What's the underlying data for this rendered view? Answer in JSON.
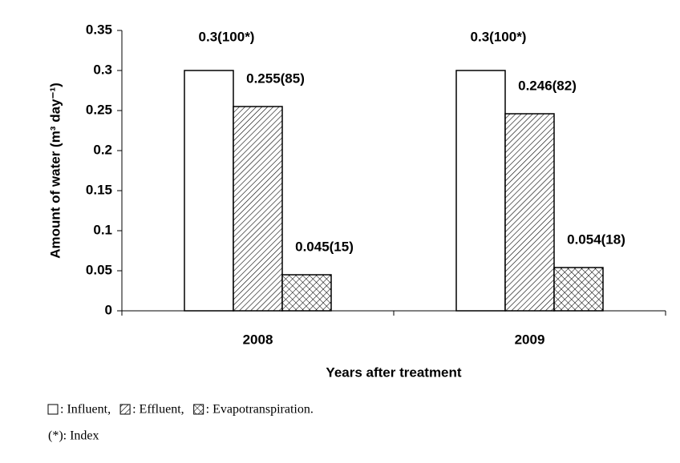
{
  "chart_data": {
    "type": "bar",
    "categories": [
      "2008",
      "2009"
    ],
    "series": [
      {
        "name": ": Influent,",
        "color": "#ffffff",
        "pattern": "none",
        "values": [
          0.3,
          0.3
        ],
        "value_labels": [
          "0.3(100*)",
          "0.3(100*)"
        ]
      },
      {
        "name": ": Effluent,",
        "color": "#ffffff",
        "pattern": "hatch",
        "values": [
          0.255,
          0.246
        ],
        "value_labels": [
          "0.255(85)",
          "0.246(82)"
        ]
      },
      {
        "name": ": Evapotranspiration.",
        "color": "#ffffff",
        "pattern": "crosshatch",
        "values": [
          0.045,
          0.054
        ],
        "value_labels": [
          "0.045(15)",
          "0.054(18)"
        ]
      }
    ],
    "ylim": [
      0,
      0.35
    ],
    "yticks": [
      0,
      0.05,
      0.1,
      0.15,
      0.2,
      0.25,
      0.3,
      0.35
    ],
    "y_label": "Amount of water (m³ day⁻¹)",
    "x_label": "Years after treatment",
    "footnote": "(*): Index",
    "grid": false
  }
}
